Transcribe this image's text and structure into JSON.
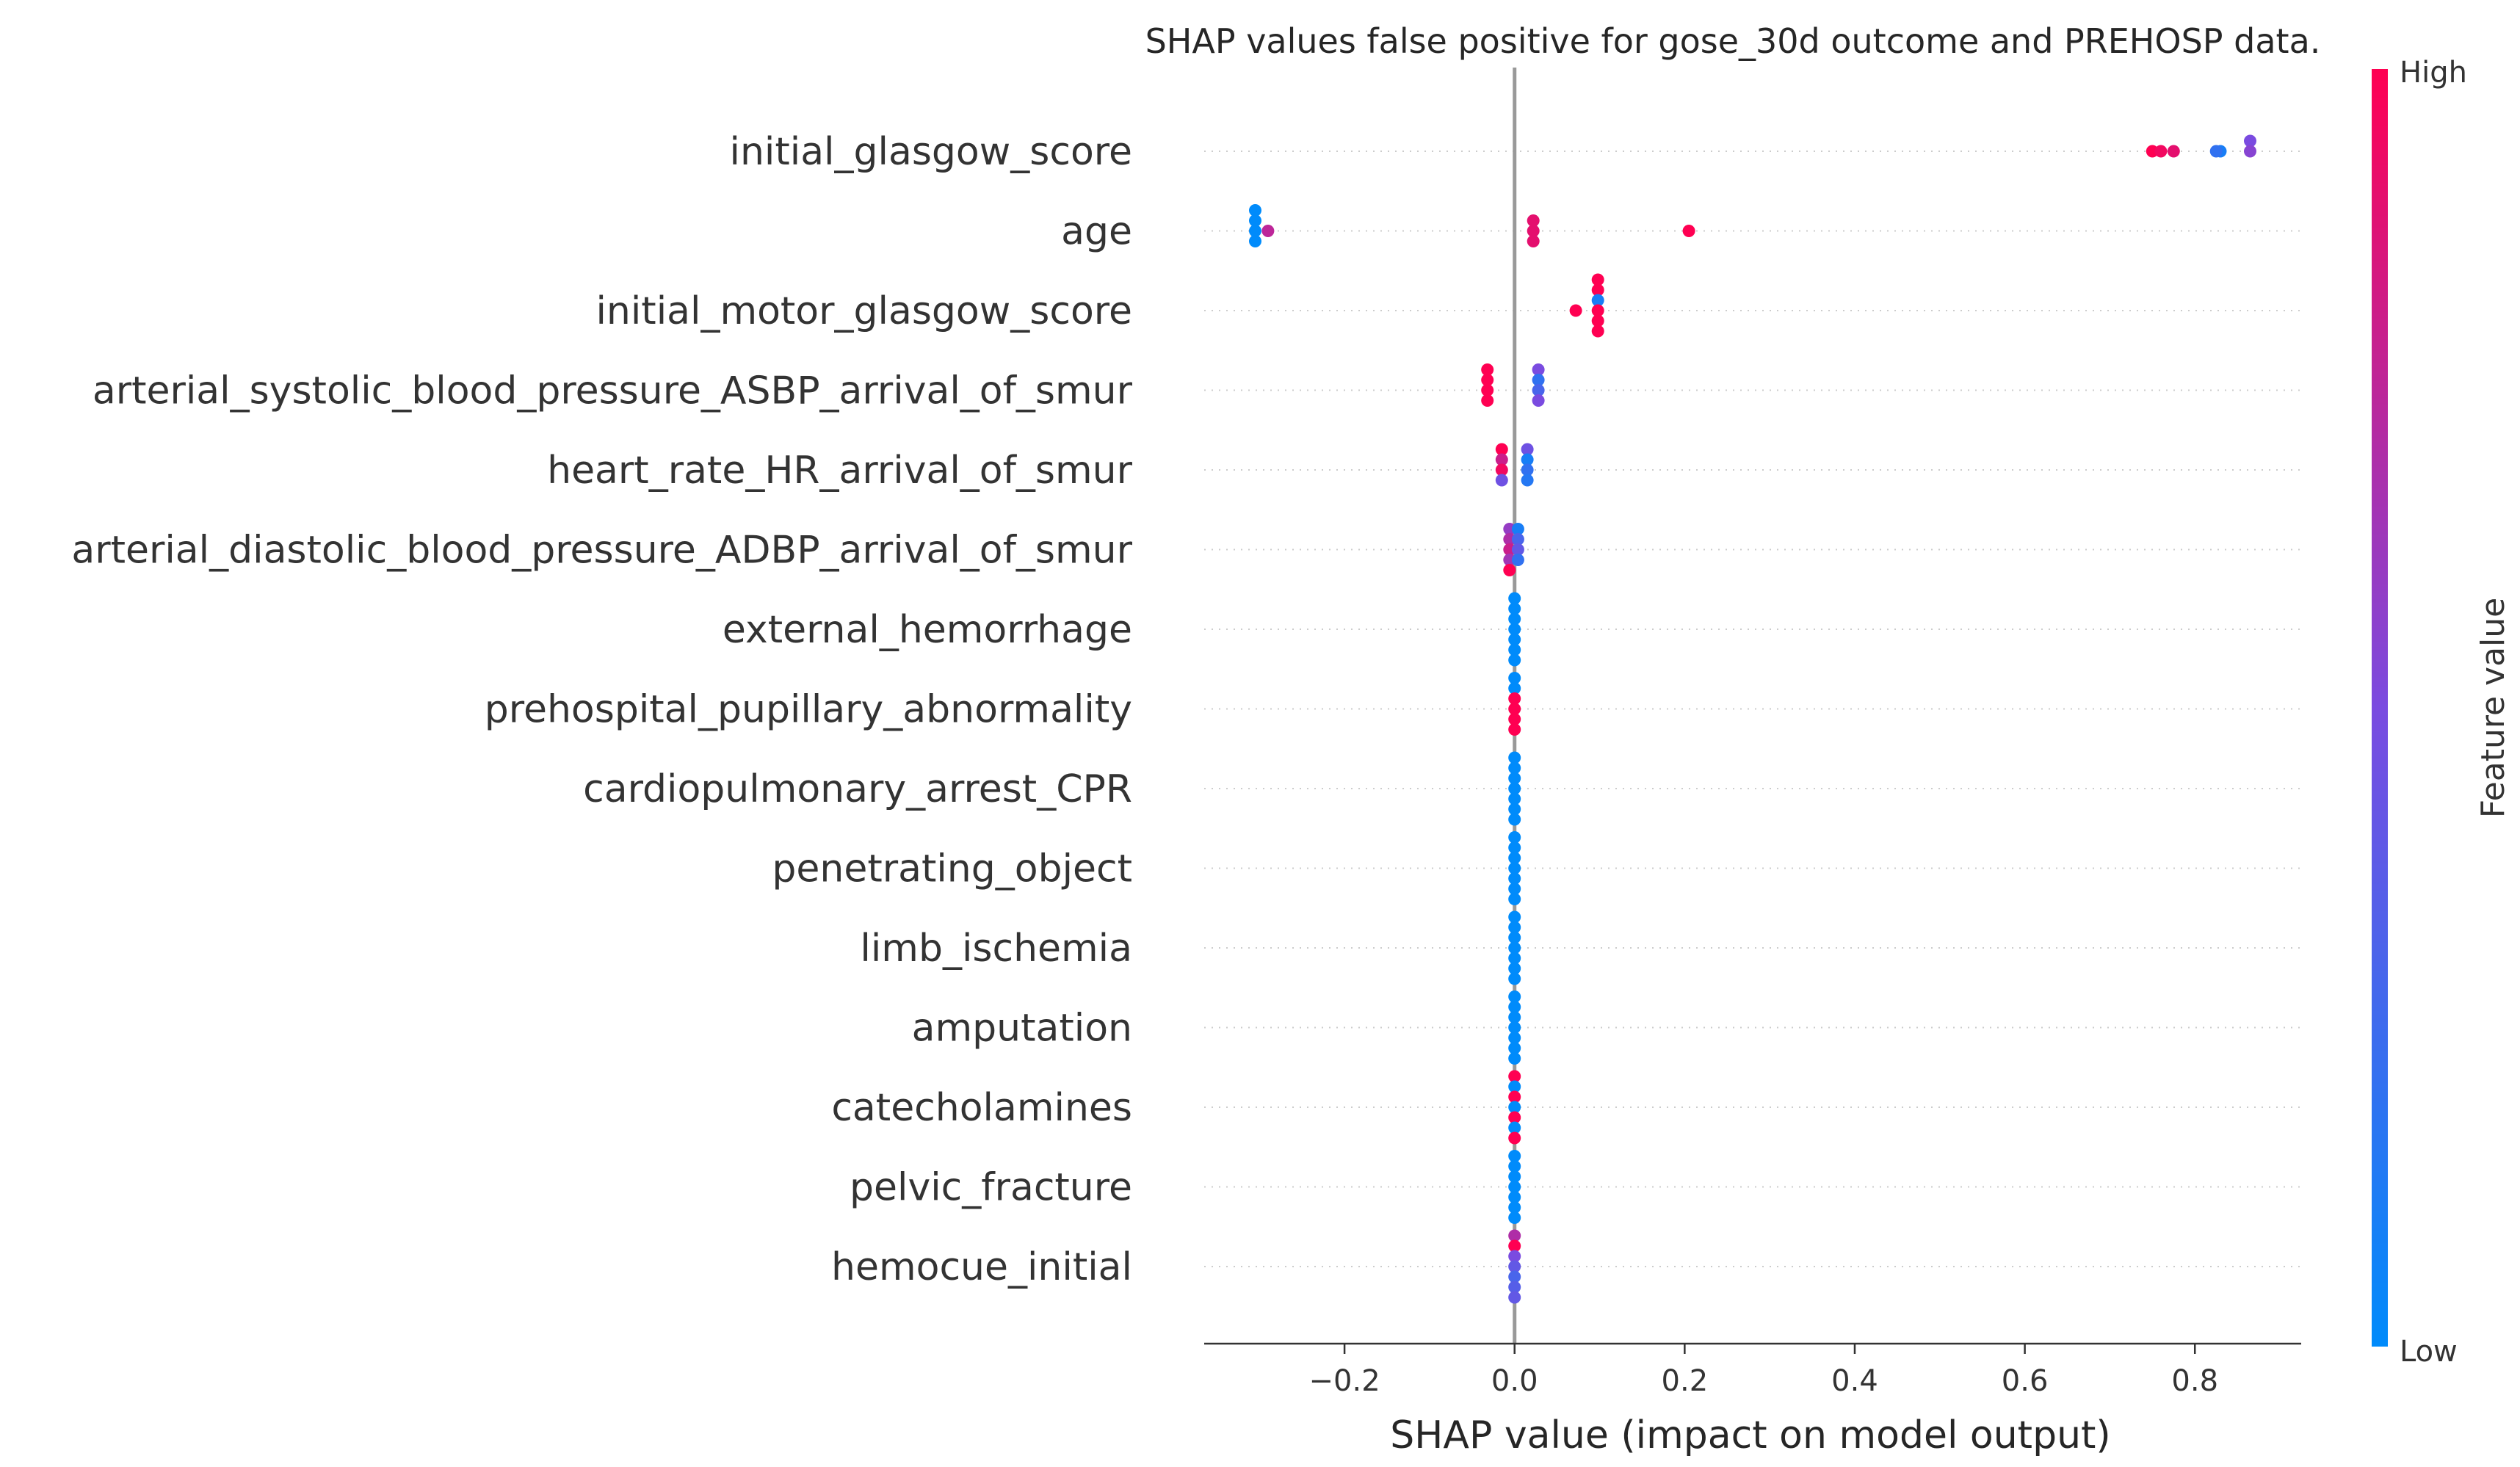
{
  "chart_data": {
    "type": "scatter",
    "title": "SHAP values false positive for gose_30d outcome and PREHOSP data.",
    "xlabel": "SHAP value (impact on model output)",
    "xlim": [
      -0.365,
      0.925
    ],
    "xticks": [
      -0.2,
      0.0,
      0.2,
      0.4,
      0.6,
      0.8
    ],
    "xtick_labels": [
      "−0.2",
      "0.0",
      "0.2",
      "0.4",
      "0.6",
      "0.8"
    ],
    "colorbar": {
      "label": "Feature value",
      "high": "High",
      "low": "Low",
      "low_color": "#008bfb",
      "high_color": "#ff0052"
    },
    "zero_line_color": "#999999",
    "features": [
      {
        "name": "initial_glasgow_score",
        "points": [
          {
            "x": 0.75,
            "y": 0,
            "v": 1.0
          },
          {
            "x": 0.76,
            "y": 0,
            "v": 0.95
          },
          {
            "x": 0.775,
            "y": 0,
            "v": 0.9
          },
          {
            "x": 0.83,
            "y": 0,
            "v": 0.1
          },
          {
            "x": 0.825,
            "y": 0,
            "v": 0.2
          },
          {
            "x": 0.865,
            "y": -1,
            "v": 0.5
          },
          {
            "x": 0.865,
            "y": 0,
            "v": 0.55
          }
        ]
      },
      {
        "name": "age",
        "points": [
          {
            "x": -0.305,
            "y": -2,
            "v": 0.0
          },
          {
            "x": -0.305,
            "y": -1,
            "v": 0.0
          },
          {
            "x": -0.305,
            "y": 0,
            "v": 0.0
          },
          {
            "x": -0.305,
            "y": 1,
            "v": 0.0
          },
          {
            "x": -0.29,
            "y": 0,
            "v": 0.75
          },
          {
            "x": 0.022,
            "y": -1,
            "v": 0.9
          },
          {
            "x": 0.022,
            "y": 0,
            "v": 0.9
          },
          {
            "x": 0.022,
            "y": 1,
            "v": 0.9
          },
          {
            "x": 0.205,
            "y": 0,
            "v": 1.0
          }
        ]
      },
      {
        "name": "initial_motor_glasgow_score",
        "points": [
          {
            "x": 0.072,
            "y": 0,
            "v": 1.0
          },
          {
            "x": 0.098,
            "y": -3,
            "v": 1.0
          },
          {
            "x": 0.098,
            "y": -2,
            "v": 1.0
          },
          {
            "x": 0.098,
            "y": -1,
            "v": 0.1
          },
          {
            "x": 0.098,
            "y": 0,
            "v": 1.0
          },
          {
            "x": 0.098,
            "y": 1,
            "v": 1.0
          },
          {
            "x": 0.098,
            "y": 2,
            "v": 1.0
          }
        ]
      },
      {
        "name": "arterial_systolic_blood_pressure_ASBP_arrival_of_smur",
        "points": [
          {
            "x": -0.032,
            "y": -2,
            "v": 1.0
          },
          {
            "x": -0.032,
            "y": -1,
            "v": 1.0
          },
          {
            "x": -0.032,
            "y": 0,
            "v": 1.0
          },
          {
            "x": -0.032,
            "y": 1,
            "v": 1.0
          },
          {
            "x": 0.028,
            "y": -2,
            "v": 0.5
          },
          {
            "x": 0.028,
            "y": -1,
            "v": 0.2
          },
          {
            "x": 0.028,
            "y": 0,
            "v": 0.3
          },
          {
            "x": 0.028,
            "y": 1,
            "v": 0.5
          }
        ]
      },
      {
        "name": "heart_rate_HR_arrival_of_smur",
        "points": [
          {
            "x": -0.015,
            "y": -2,
            "v": 1.0
          },
          {
            "x": -0.015,
            "y": -1,
            "v": 0.8
          },
          {
            "x": -0.015,
            "y": 0,
            "v": 0.95
          },
          {
            "x": -0.015,
            "y": 1,
            "v": 0.45
          },
          {
            "x": 0.015,
            "y": -2,
            "v": 0.45
          },
          {
            "x": 0.015,
            "y": -1,
            "v": 0.1
          },
          {
            "x": 0.015,
            "y": 0,
            "v": 0.2
          },
          {
            "x": 0.015,
            "y": 1,
            "v": 0.15
          }
        ]
      },
      {
        "name": "arterial_diastolic_blood_pressure_ADBP_arrival_of_smur",
        "points": [
          {
            "x": -0.006,
            "y": -2,
            "v": 0.6
          },
          {
            "x": -0.006,
            "y": -1,
            "v": 0.7
          },
          {
            "x": -0.006,
            "y": 0,
            "v": 0.8
          },
          {
            "x": -0.006,
            "y": 1,
            "v": 0.65
          },
          {
            "x": -0.006,
            "y": 2,
            "v": 1.0
          },
          {
            "x": 0.004,
            "y": -2,
            "v": 0.1
          },
          {
            "x": 0.004,
            "y": -1,
            "v": 0.3
          },
          {
            "x": 0.004,
            "y": 0,
            "v": 0.4
          },
          {
            "x": 0.004,
            "y": 1,
            "v": 0.2
          }
        ]
      },
      {
        "name": "external_hemorrhage",
        "points": [
          {
            "x": 0.0,
            "y": -3,
            "v": 0.0
          },
          {
            "x": 0.0,
            "y": -2,
            "v": 0.0
          },
          {
            "x": 0.0,
            "y": -1,
            "v": 0.0
          },
          {
            "x": 0.0,
            "y": 0,
            "v": 0.0
          },
          {
            "x": 0.0,
            "y": 1,
            "v": 0.0
          },
          {
            "x": 0.0,
            "y": 2,
            "v": 0.0
          },
          {
            "x": 0.0,
            "y": 3,
            "v": 0.0
          }
        ]
      },
      {
        "name": "prehospital_pupillary_abnormality",
        "points": [
          {
            "x": 0.0,
            "y": -3,
            "v": 0.0
          },
          {
            "x": 0.0,
            "y": -2,
            "v": 0.0
          },
          {
            "x": 0.0,
            "y": -1,
            "v": 1.0
          },
          {
            "x": 0.0,
            "y": 0,
            "v": 1.0
          },
          {
            "x": 0.0,
            "y": 1,
            "v": 1.0
          },
          {
            "x": 0.0,
            "y": 2,
            "v": 1.0
          }
        ]
      },
      {
        "name": "cardiopulmonary_arrest_CPR",
        "points": [
          {
            "x": 0.0,
            "y": -3,
            "v": 0.0
          },
          {
            "x": 0.0,
            "y": -2,
            "v": 0.0
          },
          {
            "x": 0.0,
            "y": -1,
            "v": 0.0
          },
          {
            "x": 0.0,
            "y": 0,
            "v": 0.0
          },
          {
            "x": 0.0,
            "y": 1,
            "v": 0.0
          },
          {
            "x": 0.0,
            "y": 2,
            "v": 0.0
          },
          {
            "x": 0.0,
            "y": 3,
            "v": 0.0
          }
        ]
      },
      {
        "name": "penetrating_object",
        "points": [
          {
            "x": 0.0,
            "y": -3,
            "v": 0.0
          },
          {
            "x": 0.0,
            "y": -2,
            "v": 0.0
          },
          {
            "x": 0.0,
            "y": -1,
            "v": 0.0
          },
          {
            "x": 0.0,
            "y": 0,
            "v": 0.0
          },
          {
            "x": 0.0,
            "y": 1,
            "v": 0.0
          },
          {
            "x": 0.0,
            "y": 2,
            "v": 0.0
          },
          {
            "x": 0.0,
            "y": 3,
            "v": 0.0
          }
        ]
      },
      {
        "name": "limb_ischemia",
        "points": [
          {
            "x": 0.0,
            "y": -3,
            "v": 0.0
          },
          {
            "x": 0.0,
            "y": -2,
            "v": 0.0
          },
          {
            "x": 0.0,
            "y": -1,
            "v": 0.0
          },
          {
            "x": 0.0,
            "y": 0,
            "v": 0.0
          },
          {
            "x": 0.0,
            "y": 1,
            "v": 0.0
          },
          {
            "x": 0.0,
            "y": 2,
            "v": 0.0
          },
          {
            "x": 0.0,
            "y": 3,
            "v": 0.0
          }
        ]
      },
      {
        "name": "amputation",
        "points": [
          {
            "x": 0.0,
            "y": -3,
            "v": 0.0
          },
          {
            "x": 0.0,
            "y": -2,
            "v": 0.0
          },
          {
            "x": 0.0,
            "y": -1,
            "v": 0.0
          },
          {
            "x": 0.0,
            "y": 0,
            "v": 0.0
          },
          {
            "x": 0.0,
            "y": 1,
            "v": 0.0
          },
          {
            "x": 0.0,
            "y": 2,
            "v": 0.0
          },
          {
            "x": 0.0,
            "y": 3,
            "v": 0.0
          }
        ]
      },
      {
        "name": "catecholamines",
        "points": [
          {
            "x": 0.0,
            "y": -3,
            "v": 1.0
          },
          {
            "x": 0.0,
            "y": -2,
            "v": 0.0
          },
          {
            "x": 0.0,
            "y": -1,
            "v": 1.0
          },
          {
            "x": 0.0,
            "y": 0,
            "v": 0.0
          },
          {
            "x": 0.0,
            "y": 1,
            "v": 1.0
          },
          {
            "x": 0.0,
            "y": 2,
            "v": 0.0
          },
          {
            "x": 0.0,
            "y": 3,
            "v": 1.0
          }
        ]
      },
      {
        "name": "pelvic_fracture",
        "points": [
          {
            "x": 0.0,
            "y": -3,
            "v": 0.0
          },
          {
            "x": 0.0,
            "y": -2,
            "v": 0.0
          },
          {
            "x": 0.0,
            "y": -1,
            "v": 0.0
          },
          {
            "x": 0.0,
            "y": 0,
            "v": 0.0
          },
          {
            "x": 0.0,
            "y": 1,
            "v": 0.0
          },
          {
            "x": 0.0,
            "y": 2,
            "v": 0.0
          },
          {
            "x": 0.0,
            "y": 3,
            "v": 0.0
          }
        ]
      },
      {
        "name": "hemocue_initial",
        "points": [
          {
            "x": 0.0,
            "y": -3,
            "v": 0.7
          },
          {
            "x": 0.0,
            "y": -2,
            "v": 1.0
          },
          {
            "x": 0.0,
            "y": -1,
            "v": 0.5
          },
          {
            "x": 0.0,
            "y": 0,
            "v": 0.4
          },
          {
            "x": 0.0,
            "y": 1,
            "v": 0.3
          },
          {
            "x": 0.0,
            "y": 2,
            "v": 0.35
          },
          {
            "x": 0.0,
            "y": 3,
            "v": 0.4
          }
        ]
      }
    ]
  }
}
